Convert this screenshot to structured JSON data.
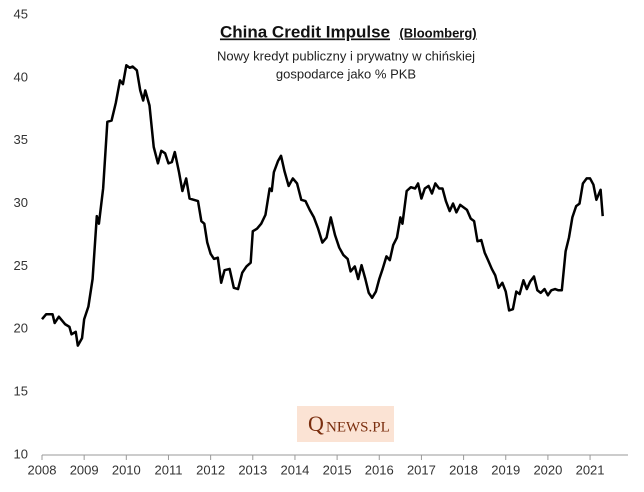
{
  "chart_data": {
    "type": "line",
    "title": "China Credit Impulse",
    "title_note": "(Bloomberg)",
    "subtitle": [
      "Nowy kredyt publiczny i prywatny w chińskiej",
      "gospodarce jako % PKB"
    ],
    "watermark": [
      "Q",
      "NEWS.PL"
    ],
    "xlim": [
      2008,
      2021.9
    ],
    "xticks": [
      2008,
      2009,
      2010,
      2011,
      2012,
      2013,
      2014,
      2015,
      2016,
      2017,
      2018,
      2019,
      2020,
      2021
    ],
    "ylim": [
      10,
      45
    ],
    "yticks": [
      10,
      15,
      20,
      25,
      30,
      35,
      40,
      45
    ],
    "grid": false,
    "x": [
      2008.0,
      2008.1,
      2008.25,
      2008.3,
      2008.4,
      2008.55,
      2008.65,
      2008.7,
      2008.8,
      2008.85,
      2008.95,
      2009.0,
      2009.1,
      2009.2,
      2009.3,
      2009.35,
      2009.45,
      2009.55,
      2009.65,
      2009.75,
      2009.85,
      2009.92,
      2010.0,
      2010.08,
      2010.15,
      2010.25,
      2010.33,
      2010.4,
      2010.45,
      2010.55,
      2010.65,
      2010.75,
      2010.83,
      2010.92,
      2011.0,
      2011.08,
      2011.15,
      2011.25,
      2011.33,
      2011.42,
      2011.5,
      2011.6,
      2011.7,
      2011.78,
      2011.85,
      2011.92,
      2012.0,
      2012.08,
      2012.17,
      2012.25,
      2012.33,
      2012.45,
      2012.55,
      2012.65,
      2012.75,
      2012.85,
      2012.95,
      2013.0,
      2013.1,
      2013.2,
      2013.3,
      2013.4,
      2013.45,
      2013.5,
      2013.6,
      2013.67,
      2013.75,
      2013.85,
      2013.95,
      2014.05,
      2014.15,
      2014.25,
      2014.35,
      2014.45,
      2014.55,
      2014.65,
      2014.75,
      2014.85,
      2014.95,
      2015.05,
      2015.15,
      2015.25,
      2015.32,
      2015.42,
      2015.5,
      2015.58,
      2015.67,
      2015.75,
      2015.83,
      2015.92,
      2016.0,
      2016.08,
      2016.17,
      2016.25,
      2016.33,
      2016.42,
      2016.5,
      2016.55,
      2016.65,
      2016.75,
      2016.85,
      2016.92,
      2017.0,
      2017.08,
      2017.17,
      2017.25,
      2017.33,
      2017.42,
      2017.5,
      2017.58,
      2017.67,
      2017.75,
      2017.83,
      2017.92,
      2018.0,
      2018.08,
      2018.17,
      2018.25,
      2018.33,
      2018.42,
      2018.5,
      2018.58,
      2018.67,
      2018.75,
      2018.83,
      2018.92,
      2019.0,
      2019.08,
      2019.17,
      2019.25,
      2019.33,
      2019.42,
      2019.5,
      2019.58,
      2019.67,
      2019.75,
      2019.83,
      2019.92,
      2020.0,
      2020.08,
      2020.17,
      2020.25,
      2020.33,
      2020.42,
      2020.5,
      2020.58,
      2020.67,
      2020.75,
      2020.83,
      2020.92,
      2021.0,
      2021.08,
      2021.15,
      2021.25,
      2021.3
    ],
    "series": [
      {
        "name": "China Credit Impulse",
        "color": "#000000",
        "values": [
          20.8,
          21.2,
          21.2,
          20.5,
          21.0,
          20.4,
          20.2,
          19.6,
          19.8,
          18.7,
          19.3,
          20.8,
          21.8,
          24.0,
          29.0,
          28.4,
          31.2,
          36.5,
          36.6,
          38.0,
          39.8,
          39.5,
          41.0,
          40.8,
          40.9,
          40.6,
          39.0,
          38.2,
          39.0,
          37.8,
          34.5,
          33.2,
          34.2,
          34.0,
          33.2,
          33.3,
          34.1,
          32.5,
          31.0,
          32.0,
          30.4,
          30.3,
          30.2,
          28.6,
          28.4,
          26.9,
          26.0,
          25.6,
          25.7,
          23.7,
          24.7,
          24.8,
          23.3,
          23.2,
          24.5,
          25.0,
          25.3,
          27.8,
          28.0,
          28.4,
          29.1,
          31.2,
          31.0,
          32.5,
          33.4,
          33.8,
          32.6,
          31.4,
          32.0,
          31.6,
          30.3,
          30.2,
          29.5,
          28.9,
          28.0,
          26.9,
          27.3,
          28.9,
          27.5,
          26.5,
          25.9,
          25.6,
          24.6,
          25.0,
          24.0,
          25.1,
          24.0,
          22.9,
          22.5,
          23.0,
          24.0,
          24.8,
          25.8,
          25.5,
          26.7,
          27.3,
          28.9,
          28.4,
          31.0,
          31.3,
          31.2,
          31.6,
          30.4,
          31.2,
          31.4,
          30.8,
          31.6,
          31.2,
          31.2,
          30.2,
          29.4,
          30.0,
          29.3,
          29.9,
          29.7,
          29.5,
          28.8,
          28.6,
          27.0,
          27.1,
          26.1,
          25.5,
          24.8,
          24.3,
          23.3,
          23.7,
          23.0,
          21.5,
          21.6,
          23.0,
          22.8,
          23.9,
          23.2,
          23.8,
          24.2,
          23.1,
          22.9,
          23.2,
          22.7,
          23.1,
          23.2,
          23.1,
          23.1,
          26.2,
          27.3,
          28.9,
          29.8,
          30.0,
          31.6,
          32.0,
          32.0,
          31.5,
          30.3,
          31.1,
          29.0
        ]
      }
    ]
  }
}
